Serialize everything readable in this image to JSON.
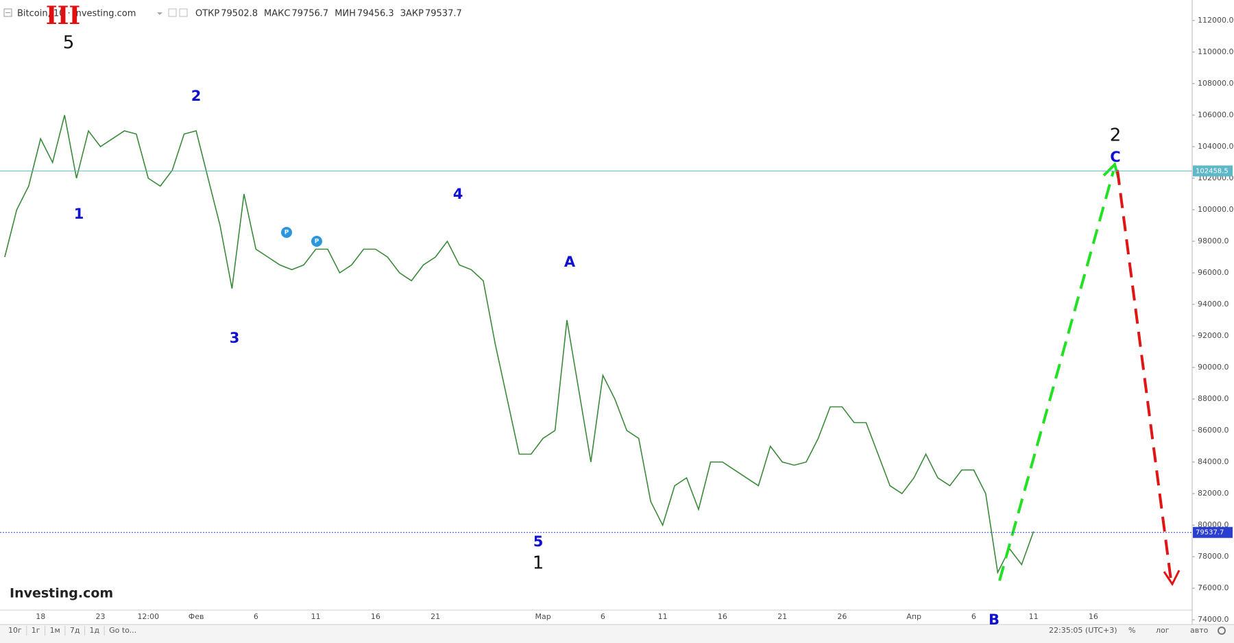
{
  "chart_data": {
    "type": "line",
    "title": "Bitcoin, 10 · Investing.com",
    "ohlc": [
      {
        "label": "ОТКР",
        "value": 79502.8
      },
      {
        "label": "МАКС",
        "value": 79756.7
      },
      {
        "label": "МИН",
        "value": 79456.3
      },
      {
        "label": "ЗАКР",
        "value": 79537.7
      }
    ],
    "logo": "Investing.com",
    "categories": [
      null,
      null,
      null,
      "18",
      null,
      null,
      null,
      null,
      "23",
      null,
      null,
      null,
      "12:00",
      null,
      null,
      null,
      "Фев",
      null,
      null,
      null,
      null,
      "6",
      null,
      null,
      null,
      null,
      "11",
      null,
      null,
      null,
      null,
      "16",
      null,
      null,
      null,
      null,
      "21",
      null,
      null,
      null,
      null,
      null,
      null,
      null,
      null,
      "Мар",
      null,
      null,
      null,
      null,
      "6",
      null,
      null,
      null,
      null,
      "11",
      null,
      null,
      null,
      null,
      "16",
      null,
      null,
      null,
      null,
      "21",
      null,
      null,
      null,
      null,
      "26",
      null,
      null,
      null,
      null,
      null,
      "Апр",
      null,
      null,
      null,
      null,
      "6",
      null,
      null,
      null,
      null,
      "11",
      null,
      null,
      null,
      null,
      "16",
      null,
      null,
      null,
      null,
      null,
      null,
      null,
      null
    ],
    "series": [
      {
        "name": "Bitcoin",
        "color": "#3a8a3a",
        "values": [
          97000,
          100000,
          101500,
          104500,
          103000,
          106000,
          102000,
          105000,
          104000,
          104500,
          105000,
          104800,
          102000,
          101500,
          102500,
          104800,
          105000,
          102000,
          99000,
          95000,
          101000,
          97500,
          97000,
          96500,
          96200,
          96500,
          97500,
          97500,
          96000,
          96500,
          97500,
          97500,
          97000,
          96000,
          95500,
          96500,
          97000,
          98000,
          96500,
          96200,
          95500,
          91500,
          88000,
          84500,
          84500,
          85500,
          86000,
          93000,
          88500,
          84000,
          89500,
          88000,
          86000,
          85500,
          81500,
          80000,
          82500,
          83000,
          81000,
          84000,
          84000,
          83500,
          83000,
          82500,
          85000,
          84000,
          83800,
          84000,
          85500,
          87500,
          87500,
          86500,
          86500,
          84500,
          82500,
          82000,
          83000,
          84500,
          83000,
          82500,
          83500,
          83500,
          82000,
          77000,
          78500,
          77500,
          79600,
          null,
          null,
          null,
          null,
          null,
          null,
          null,
          null,
          null,
          null,
          null,
          null,
          null
        ]
      }
    ],
    "ylim": [
      73700,
      113300
    ],
    "yticks": [
      {
        "value": 74000,
        "label": "74000.0"
      },
      {
        "value": 76000,
        "label": "76000.0"
      },
      {
        "value": 78000,
        "label": "78000.0"
      },
      {
        "value": 80000,
        "label": "80000.0"
      },
      {
        "value": 82000,
        "label": "82000.0"
      },
      {
        "value": 84000,
        "label": "84000.0"
      },
      {
        "value": 86000,
        "label": "86000.0"
      },
      {
        "value": 88000,
        "label": "88000.0"
      },
      {
        "value": 90000,
        "label": "90000.0"
      },
      {
        "value": 92000,
        "label": "92000.0"
      },
      {
        "value": 94000,
        "label": "94000.0"
      },
      {
        "value": 96000,
        "label": "96000.0"
      },
      {
        "value": 98000,
        "label": "98000.0"
      },
      {
        "value": 100000,
        "label": "100000.0"
      },
      {
        "value": 102000,
        "label": "102000.0"
      },
      {
        "value": 104000,
        "label": "104000.0"
      },
      {
        "value": 106000,
        "label": "106000.0"
      },
      {
        "value": 108000,
        "label": "108000.0"
      },
      {
        "value": 110000,
        "label": "110000.0"
      },
      {
        "value": 112000,
        "label": "112000.0"
      }
    ],
    "grid": false,
    "price_lines": [
      {
        "value": 102458.5,
        "color": "#5fb8c8"
      },
      {
        "value": 79537.7,
        "color": "#2a3fd0"
      }
    ],
    "annotations": [
      {
        "text": "III",
        "color": "#e01010"
      },
      {
        "text": "5",
        "color": "#111111"
      },
      {
        "text": "1",
        "color": "#1010d0"
      },
      {
        "text": "2",
        "color": "#1010d0"
      },
      {
        "text": "3",
        "color": "#1010d0"
      },
      {
        "text": "4",
        "color": "#1010d0"
      },
      {
        "text": "5",
        "color": "#1010d0"
      },
      {
        "text": "1",
        "color": "#111111"
      },
      {
        "text": "A",
        "color": "#1010d0"
      },
      {
        "text": "B",
        "color": "#1010d0"
      },
      {
        "text": "C",
        "color": "#1010d0"
      },
      {
        "text": "2",
        "color": "#111111"
      }
    ],
    "toolbar": {
      "ranges": [
        "10г",
        "1г",
        "1м",
        "7д",
        "1д"
      ],
      "goto": "Go to...",
      "time": "22:35:05 (UTC+3)",
      "options": [
        "%",
        "лог",
        "авто"
      ]
    }
  }
}
